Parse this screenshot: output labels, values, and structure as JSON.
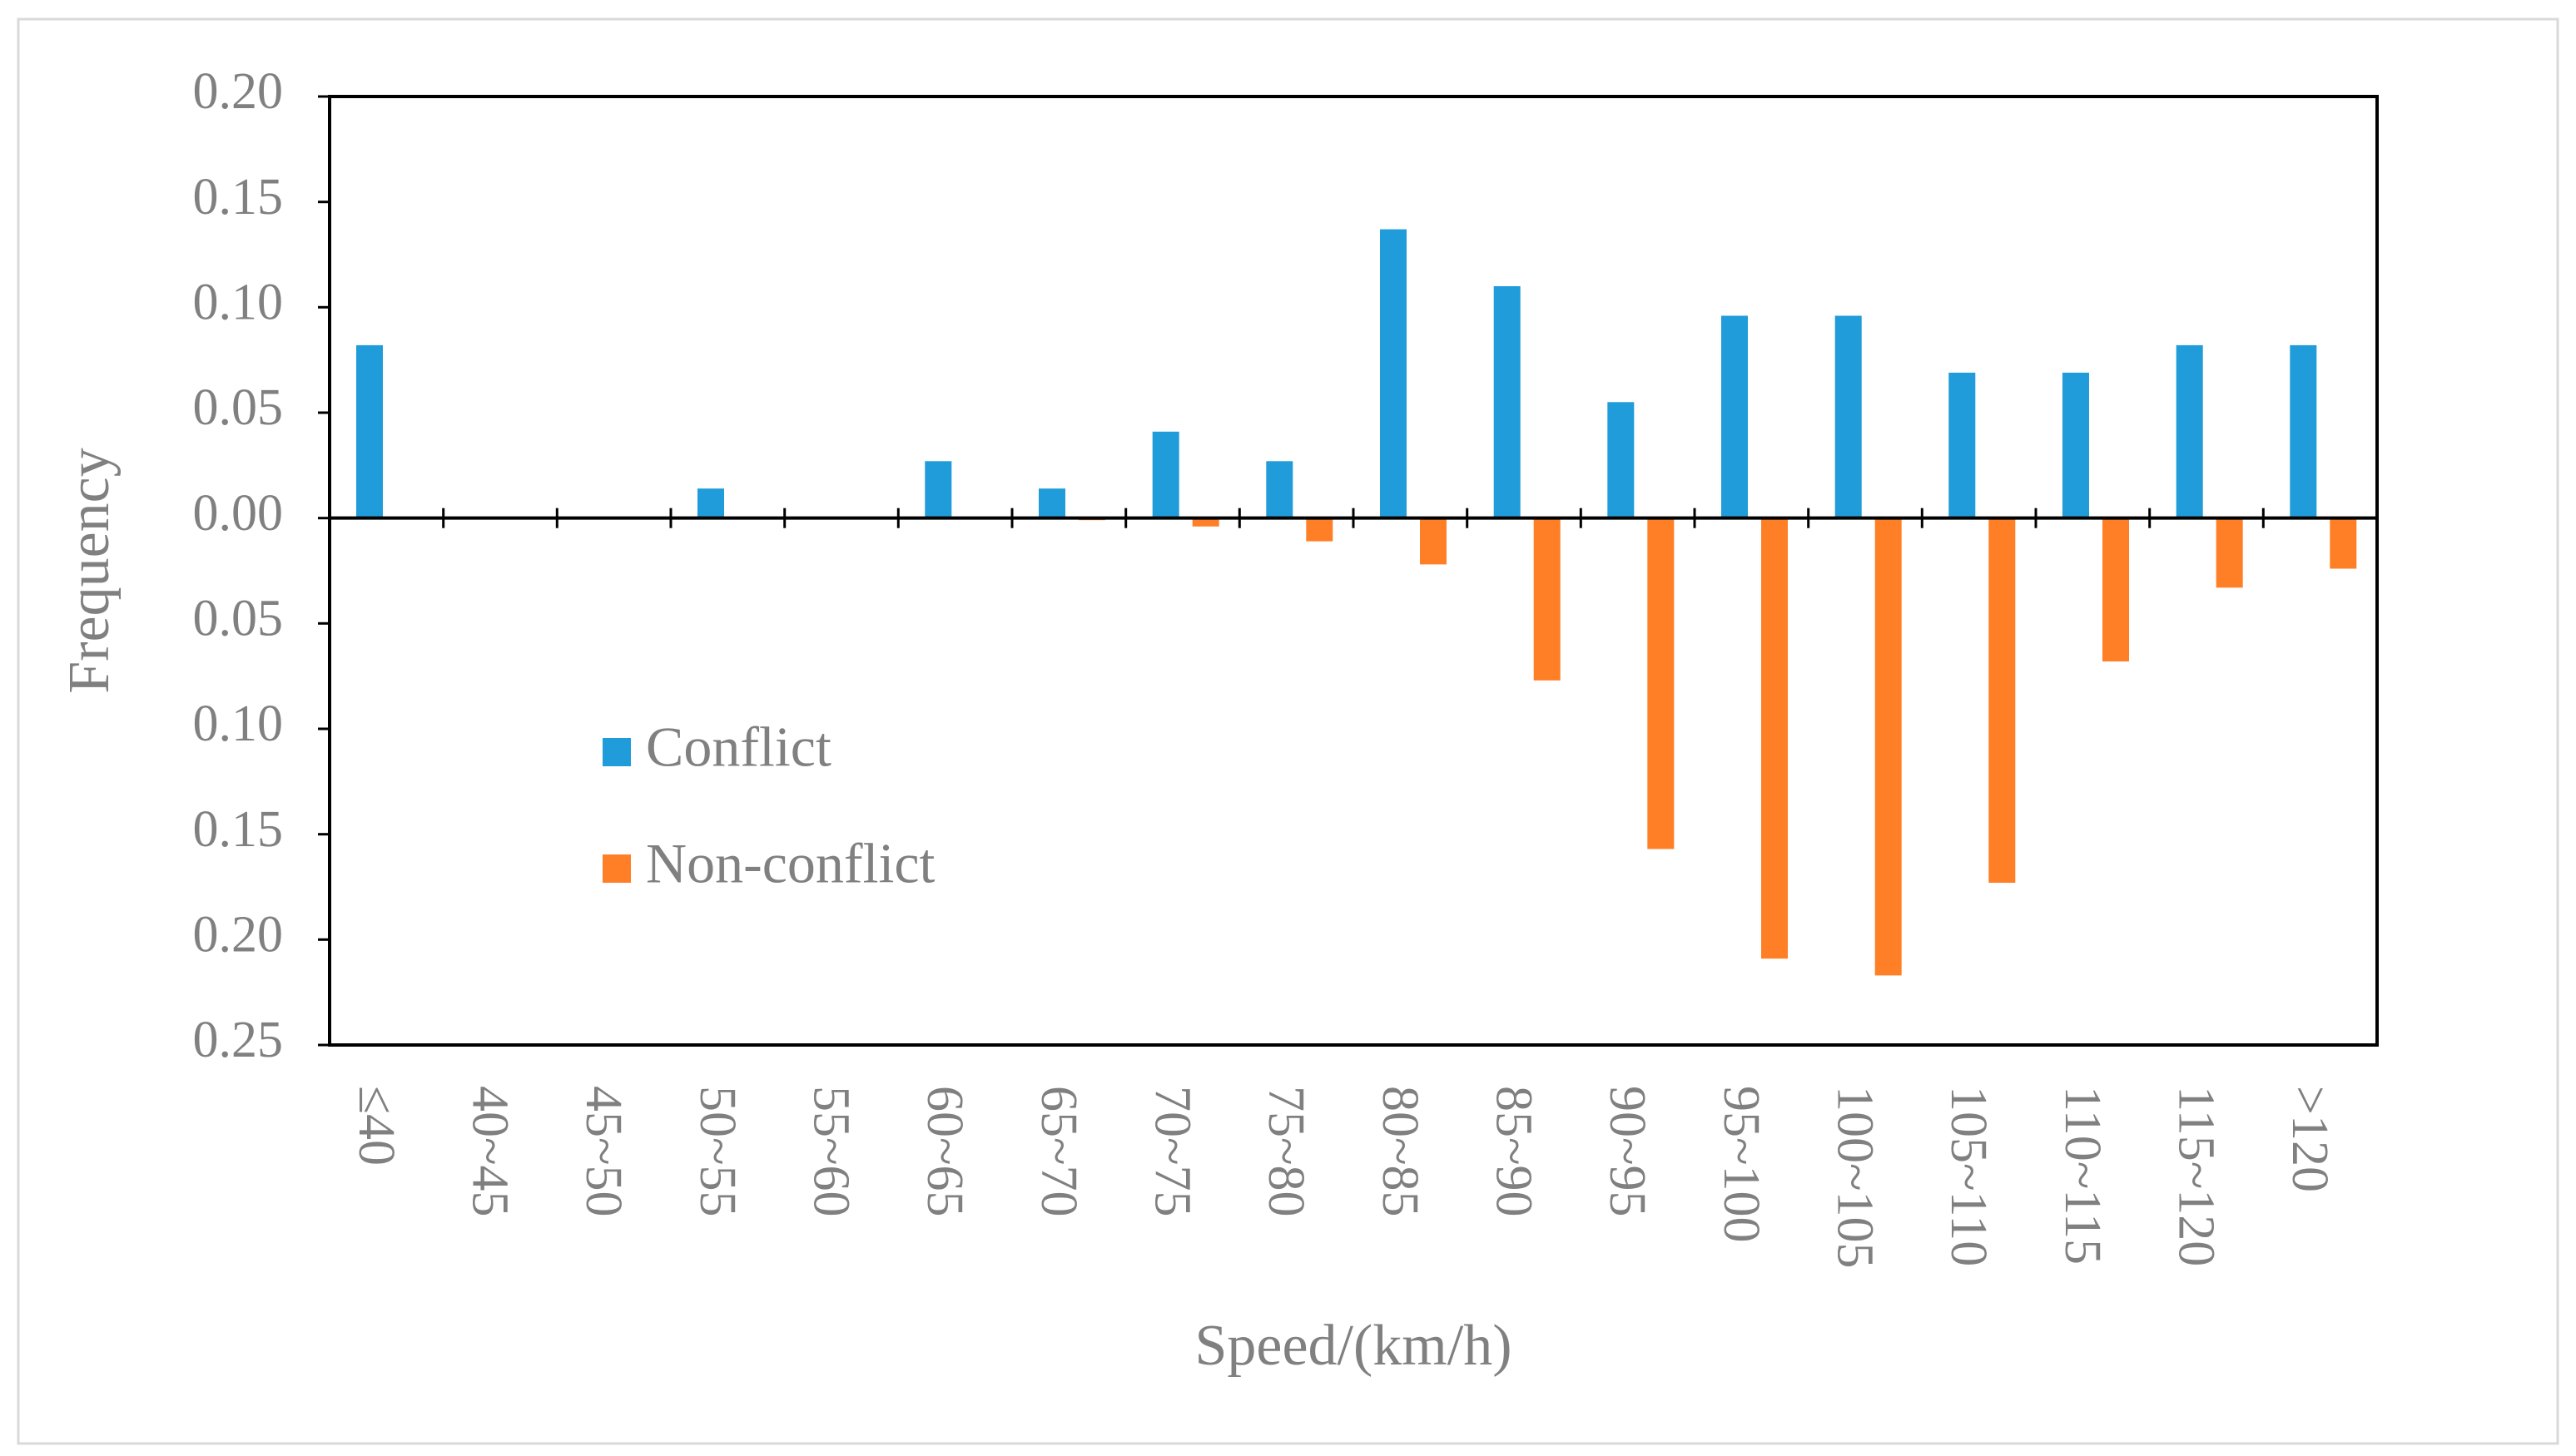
{
  "chart_data": {
    "type": "bar",
    "title": "",
    "xlabel": "Speed/(km/h)",
    "ylabel": "Frequency",
    "categories": [
      "≤40",
      "40~45",
      "45~50",
      "50~55",
      "55~60",
      "60~65",
      "65~70",
      "70~75",
      "75~80",
      "80~85",
      "85~90",
      "90~95",
      "95~100",
      "100~105",
      "105~110",
      "110~115",
      "115~120",
      ">120"
    ],
    "series": [
      {
        "name": "Conflict",
        "color": "#1f9cd9",
        "direction": "up",
        "values": [
          0.082,
          0,
          0,
          0.014,
          0,
          0.027,
          0.014,
          0.041,
          0.027,
          0.137,
          0.11,
          0.055,
          0.096,
          0.096,
          0.069,
          0.069,
          0.082,
          0.082
        ]
      },
      {
        "name": "Non-conflict",
        "color": "#ff7f27",
        "direction": "down",
        "values": [
          0,
          0,
          0,
          0,
          0,
          0,
          0.001,
          0.004,
          0.011,
          0.022,
          0.077,
          0.157,
          0.209,
          0.217,
          0.173,
          0.068,
          0.033,
          0.024
        ]
      }
    ],
    "ylim": [
      -0.25,
      0.2
    ],
    "y_ticks": [
      0.2,
      0.15,
      0.1,
      0.05,
      0.0,
      -0.05,
      -0.1,
      -0.15,
      -0.2,
      -0.25
    ],
    "y_tick_labels": [
      "0.20",
      "0.15",
      "0.10",
      "0.05",
      "0.00",
      "0.05",
      "0.10",
      "0.15",
      "0.20",
      "0.25"
    ],
    "legend_position": "left-center",
    "grid": false,
    "colors": {
      "axis": "#000000",
      "text": "#808080",
      "frame": "#d9d9d9",
      "background": "#ffffff"
    }
  }
}
